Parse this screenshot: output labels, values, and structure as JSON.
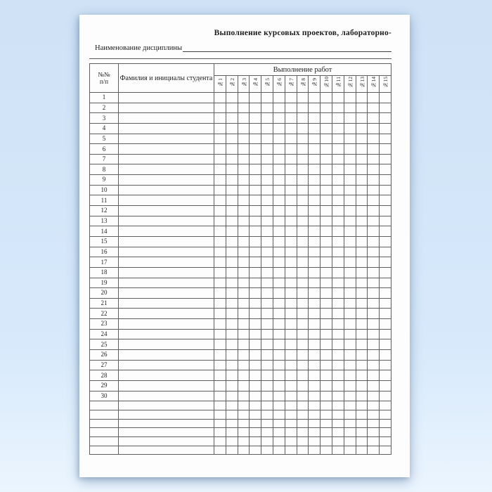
{
  "page": {
    "title": "Выполнение курсовых проектов, лабораторно-",
    "discipline_label": "Наименование дисциплины",
    "discipline_value": ""
  },
  "table": {
    "number_header_line1": "№№",
    "number_header_line2": "п/п",
    "name_header": "Фамилия и инициалы студента",
    "works_group_header": "Выполнение работ",
    "work_columns": [
      "№1",
      "№2",
      "№3",
      "№4",
      "№5",
      "№6",
      "№7",
      "№8",
      "№9",
      "№10",
      "№11",
      "№12",
      "№13",
      "№14",
      "№15"
    ],
    "row_numbers": [
      "1",
      "2",
      "3",
      "4",
      "5",
      "6",
      "7",
      "8",
      "9",
      "10",
      "11",
      "12",
      "13",
      "14",
      "15",
      "16",
      "17",
      "18",
      "19",
      "20",
      "21",
      "22",
      "23",
      "24",
      "25",
      "26",
      "27",
      "28",
      "29",
      "30"
    ],
    "extra_empty_rows": 6
  },
  "colors": {
    "background_blue": "#d7e9fb",
    "paper_white": "#fdfdfe",
    "grid_line": "#5f5f5f",
    "text": "#1e1e1e"
  }
}
